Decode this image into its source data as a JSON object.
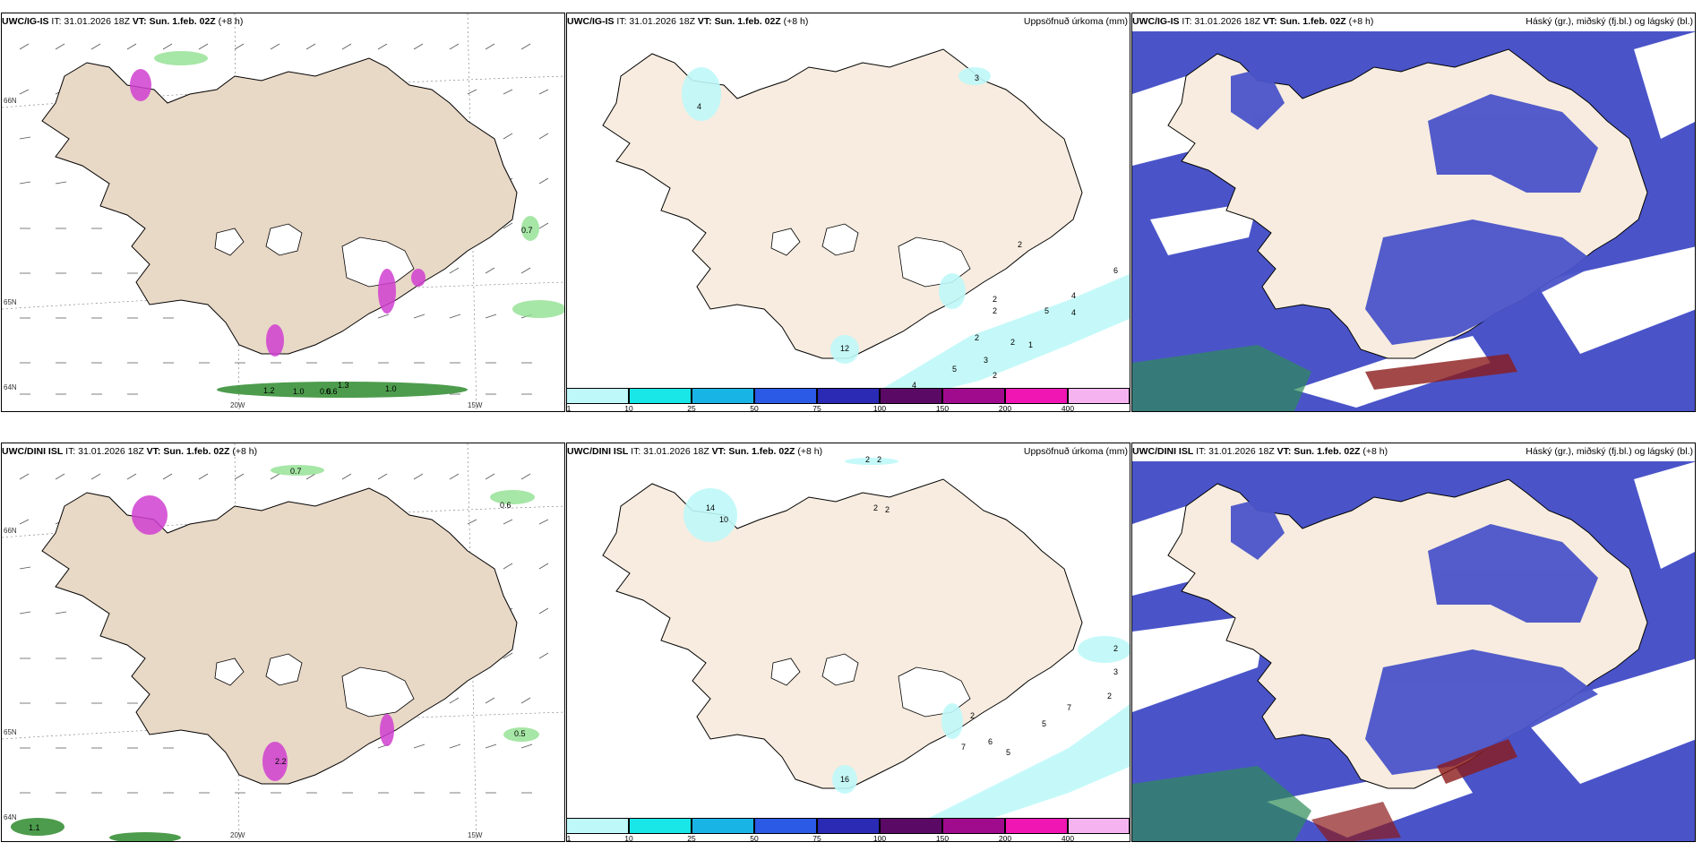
{
  "rows": [
    {
      "model": "UWC/IG-IS",
      "it_label": "IT: 31.01.2026 18Z",
      "vt_key": "VT:",
      "vt_value": "Sun. 1.feb. 02Z",
      "lead": "(+8 h)",
      "precip_title": "Uppsöfnuð úrkoma (mm)",
      "cloud_title": "Háský (gr.), miðský (fj.bl.) og lágský (bl.)",
      "wind_labels": [
        "0.7",
        "1.2",
        "1.0",
        "0.6",
        "1.3",
        "1.0",
        "0.6"
      ],
      "precip_labels": [
        "3",
        "4",
        "2",
        "6",
        "4",
        "5",
        "4",
        "2",
        "2",
        "2",
        "2",
        "1",
        "3",
        "5",
        "2",
        "4",
        "12"
      ]
    },
    {
      "model": "UWC/DINI ISL",
      "it_label": "IT: 31.01.2026 18Z",
      "vt_key": "VT:",
      "vt_value": "Sun. 1.feb. 02Z",
      "lead": "(+8 h)",
      "precip_title": "Uppsöfnuð úrkoma (mm)",
      "cloud_title": "Háský (gr.), miðský (fj.bl.) og lágský (bl.)",
      "wind_labels": [
        "0.7",
        "0.6",
        "0.5",
        "1.1",
        "2.2"
      ],
      "precip_labels": [
        "2",
        "2",
        "2",
        "2",
        "14",
        "10",
        "2",
        "3",
        "2",
        "7",
        "5",
        "2",
        "7",
        "6",
        "5",
        "16"
      ]
    }
  ],
  "graticule": {
    "lon_labels": [
      "20W",
      "15W"
    ],
    "lat_labels": [
      "66N",
      "65N",
      "64N"
    ]
  },
  "colorbar": {
    "ticks": [
      "1",
      "10",
      "25",
      "50",
      "75",
      "100",
      "150",
      "200",
      "400"
    ],
    "colors": [
      "#bff8f8",
      "#19e6e6",
      "#19b4e6",
      "#2a5ae6",
      "#2a2ab4",
      "#5a0a64",
      "#a00a8c",
      "#f016b4",
      "#f5b4f0"
    ]
  },
  "colors": {
    "land": "#f7ecdf",
    "land_wind": "#e8d8c6",
    "coast": "#000000",
    "cloud_high": "#4a54c8",
    "cloud_low_wht": "#ffffff",
    "precip_green": "#90e090",
    "precip_magenta": "#d040d0"
  }
}
